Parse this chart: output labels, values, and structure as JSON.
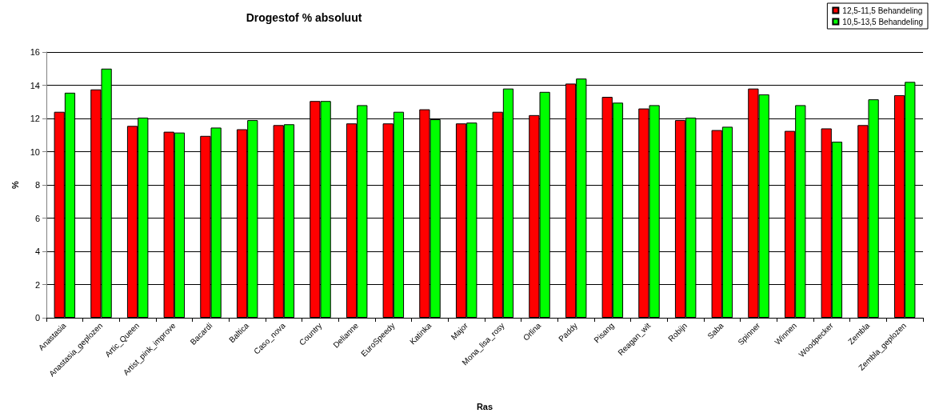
{
  "chart_data": {
    "type": "bar",
    "title": "Drogestof % absoluut",
    "xlabel": "Ras",
    "ylabel": "%",
    "categories": [
      "Anastasia",
      "Anastasia_geplozen",
      "Artic_Queen",
      "Artist_pink_improve",
      "Bacardi",
      "Baltica",
      "Caso_nova",
      "Country",
      "Delianne",
      "EuroSpeedy",
      "Katinka",
      "Major",
      "Mona_lisa_rosy",
      "Orlina",
      "Paddy",
      "Pisang",
      "Reagan_wit",
      "Robijn",
      "Saba",
      "Spinner",
      "Winnen",
      "Woodpecker",
      "Zembla",
      "Zembla_geplozen"
    ],
    "series": [
      {
        "name": "12,5-11,5 Behandeling",
        "color": "#ff0000",
        "values": [
          12.4,
          13.75,
          11.55,
          11.2,
          10.95,
          11.35,
          11.6,
          13.05,
          11.7,
          11.7,
          12.55,
          11.7,
          12.4,
          12.2,
          14.1,
          13.3,
          12.6,
          11.9,
          11.3,
          13.8,
          11.25,
          11.4,
          11.6,
          13.4
        ]
      },
      {
        "name": "10,5-13,5 Behandeling",
        "color": "#00ff00",
        "values": [
          13.55,
          15.0,
          12.05,
          11.15,
          11.45,
          11.9,
          11.65,
          13.05,
          12.8,
          12.4,
          11.95,
          11.75,
          13.8,
          13.6,
          14.4,
          12.95,
          12.8,
          12.05,
          11.5,
          13.45,
          12.8,
          10.6,
          13.15,
          14.2
        ]
      }
    ],
    "ylim": [
      0,
      16
    ],
    "yticks": [
      0,
      2,
      4,
      6,
      8,
      10,
      12,
      14,
      16
    ],
    "grid": "y",
    "legend": "top right"
  }
}
